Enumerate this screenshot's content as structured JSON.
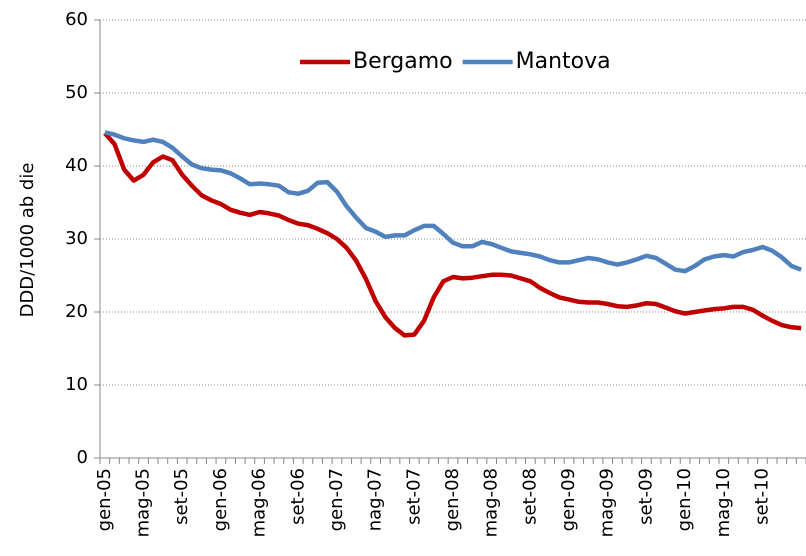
{
  "chart_data": {
    "type": "line",
    "y_label": "DDD/1000 ab die",
    "categories": [
      "gen-05",
      null,
      null,
      null,
      "mag-05",
      null,
      null,
      null,
      "set-05",
      null,
      null,
      null,
      "gen-06",
      null,
      null,
      null,
      "mag-06",
      null,
      null,
      null,
      "set-06",
      null,
      null,
      null,
      "gen-07",
      null,
      null,
      null,
      "nag-07",
      null,
      null,
      null,
      "set-07",
      null,
      null,
      null,
      "gen-08",
      null,
      null,
      null,
      "mag-08",
      null,
      null,
      null,
      "set-08",
      null,
      null,
      null,
      "gen-09",
      null,
      null,
      null,
      "mag-09",
      null,
      null,
      null,
      "set-09",
      null,
      null,
      null,
      "gen-10",
      null,
      null,
      null,
      "mag-10",
      null,
      null,
      null,
      "set-10",
      null,
      null,
      null,
      null
    ],
    "series": [
      {
        "name": "Bergamo",
        "color": "#c00000",
        "values": [
          44.5,
          43,
          39.5,
          38,
          38.8,
          40.5,
          41.3,
          40.8,
          38.8,
          37.3,
          36,
          35.3,
          34.8,
          34,
          33.6,
          33.3,
          33.7,
          33.5,
          33.2,
          32.6,
          32.1,
          31.9,
          31.4,
          30.8,
          30,
          28.8,
          27,
          24.5,
          21.5,
          19.3,
          17.8,
          16.8,
          16.9,
          18.8,
          22,
          24.2,
          24.8,
          24.6,
          24.7,
          24.9,
          25.1,
          25.1,
          25,
          24.6,
          24.2,
          23.3,
          22.6,
          22,
          21.7,
          21.4,
          21.3,
          21.3,
          21.1,
          20.8,
          20.7,
          20.9,
          21.2,
          21.1,
          20.6,
          20.1,
          19.8,
          20,
          20.2,
          20.4,
          20.5,
          20.7,
          20.7,
          20.3,
          19.5,
          18.8,
          18.2,
          17.9,
          17.8
        ]
      },
      {
        "name": "Mantova",
        "color": "#4f81bd",
        "values": [
          44.6,
          44.3,
          43.8,
          43.5,
          43.3,
          43.6,
          43.3,
          42.5,
          41.3,
          40.2,
          39.7,
          39.5,
          39.4,
          39,
          38.3,
          37.5,
          37.6,
          37.5,
          37.3,
          36.4,
          36.2,
          36.6,
          37.7,
          37.8,
          36.5,
          34.5,
          32.9,
          31.5,
          31,
          30.3,
          30.5,
          30.5,
          31.2,
          31.8,
          31.8,
          30.7,
          29.5,
          29,
          29,
          29.6,
          29.3,
          28.8,
          28.3,
          28.1,
          27.9,
          27.6,
          27.1,
          26.8,
          26.8,
          27.1,
          27.4,
          27.2,
          26.8,
          26.5,
          26.8,
          27.2,
          27.7,
          27.4,
          26.6,
          25.8,
          25.6,
          26.3,
          27.2,
          27.6,
          27.8,
          27.6,
          28.2,
          28.5,
          28.9,
          28.4,
          27.5,
          26.3,
          25.8
        ]
      }
    ],
    "ylim": [
      0,
      60
    ],
    "yticks": [
      0,
      10,
      20,
      30,
      40,
      50,
      60
    ],
    "grid": true,
    "legend_position": "upper-right"
  }
}
